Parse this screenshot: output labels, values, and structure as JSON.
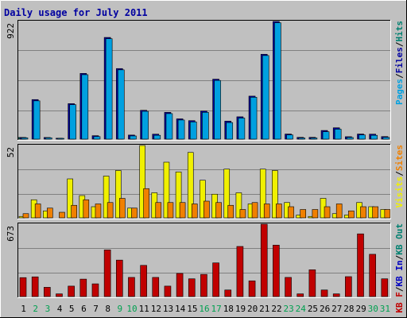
{
  "chart_data": {
    "type": "bar",
    "title": "Daily usage for July 2011",
    "categories": [
      "1",
      "2",
      "3",
      "4",
      "5",
      "6",
      "7",
      "8",
      "9",
      "10",
      "11",
      "12",
      "13",
      "14",
      "15",
      "16",
      "17",
      "18",
      "19",
      "20",
      "21",
      "22",
      "23",
      "24",
      "25",
      "26",
      "27",
      "28",
      "29",
      "30",
      "31"
    ],
    "weekend_days": [
      "2",
      "3",
      "9",
      "10",
      "16",
      "17",
      "23",
      "24",
      "30",
      "31"
    ],
    "colors": {
      "background": "#C0C0C0",
      "panel": "#C0C0C0",
      "title": "#0000A0",
      "pages": "#00A0E0",
      "files": "#0000A0",
      "hits": "#008070",
      "visits": "#F0F000",
      "sites": "#F08000",
      "kb_f": "#C00000",
      "kb_in": "#0000C0",
      "kb_out": "#008070",
      "weekday_label": "#000000",
      "weekend_label": "#00A050",
      "grid": "#808080"
    },
    "panels": [
      {
        "id": "hits-panel",
        "max_label": "922",
        "ymax": 922,
        "legend": [
          {
            "text": "Pages",
            "color": "#00A0E0"
          },
          {
            "text": "/",
            "color": "#000000"
          },
          {
            "text": "Files",
            "color": "#0000A0"
          },
          {
            "text": "/",
            "color": "#000000"
          },
          {
            "text": "Hits",
            "color": "#008070"
          }
        ],
        "series": [
          {
            "name": "Hits",
            "color": "#008070",
            "values": [
              13,
              0,
              0,
              0,
              0,
              0,
              0,
              0,
              0,
              0,
              0,
              0,
              0,
              0,
              0,
              0,
              0,
              0,
              0,
              0,
              0,
              0,
              0,
              0,
              0,
              0,
              0,
              0,
              0,
              0,
              0
            ]
          },
          {
            "name": "Files",
            "color": "#0000A0",
            "values": [
              13,
              310,
              13,
              7,
              278,
              515,
              27,
              797,
              553,
              32,
              226,
              39,
              210,
              159,
              145,
              220,
              470,
              141,
              175,
              337,
              665,
              922,
              40,
              14,
              14,
              68,
              89,
              19,
              40,
              39,
              20
            ]
          },
          {
            "name": "Pages",
            "color": "#00A0E0",
            "values": [
              10,
              300,
              10,
              5,
              270,
              505,
              20,
              787,
              543,
              25,
              218,
              30,
              200,
              150,
              135,
              210,
              460,
              130,
              165,
              328,
              655,
              912,
              33,
              9,
              9,
              58,
              78,
              13,
              33,
              30,
              14
            ]
          }
        ]
      },
      {
        "id": "visits-panel",
        "max_label": "52",
        "ymax": 52,
        "legend": [
          {
            "text": "Visits",
            "color": "#F0F000"
          },
          {
            "text": "/",
            "color": "#000000"
          },
          {
            "text": "Sites",
            "color": "#F08000"
          }
        ],
        "series": [
          {
            "name": "Visits",
            "color": "#F0F000",
            "values": [
              1,
              13,
              5,
              0,
              28,
              16,
              8,
              30,
              34,
              7,
              52,
              18,
              40,
              33,
              47,
              27,
              17,
              35,
              18,
              10,
              35,
              34,
              11,
              2,
              1,
              14,
              3,
              2,
              11,
              8,
              6
            ]
          },
          {
            "name": "Sites",
            "color": "#F08000",
            "values": [
              3,
              10,
              7,
              4,
              9,
              13,
              10,
              11,
              14,
              7,
              21,
              11,
              11,
              11,
              10,
              12,
              11,
              9,
              6,
              11,
              10,
              10,
              8,
              6,
              6,
              8,
              10,
              5,
              8,
              8,
              6
            ]
          }
        ]
      },
      {
        "id": "kbytes-panel",
        "max_label": "673",
        "ymax": 673,
        "legend": [
          {
            "text": "KB F",
            "color": "#C00000"
          },
          {
            "text": "/",
            "color": "#000000"
          },
          {
            "text": "KB In",
            "color": "#0000C0"
          },
          {
            "text": "/",
            "color": "#000000"
          },
          {
            "text": "KB Out",
            "color": "#008070"
          }
        ],
        "series": [
          {
            "name": "KB F",
            "color": "#C00000",
            "values": [
              176,
              183,
              86,
              25,
              97,
              162,
              118,
              434,
              339,
              178,
              290,
              178,
              97,
              215,
              165,
              206,
              313,
              61,
              466,
              146,
              673,
              478,
              178,
              25,
              249,
              61,
              25,
              185,
              583,
              393,
              165
            ]
          }
        ]
      }
    ]
  }
}
